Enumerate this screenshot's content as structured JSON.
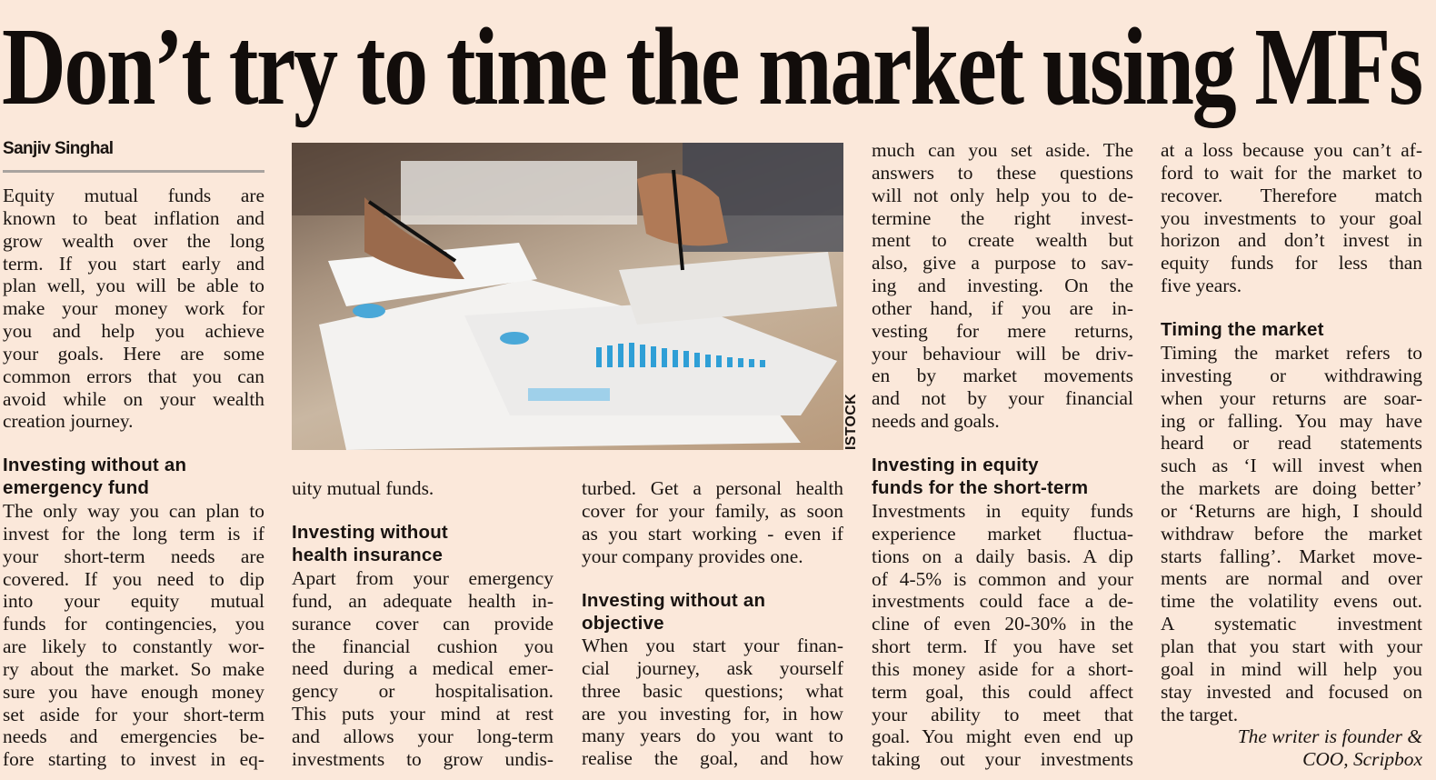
{
  "headline": "Don’t try to time the market using MFs",
  "byline": "Sanjiv Singhal",
  "photo_credit": "ISTOCK",
  "columns": [
    {
      "blocks": [
        {
          "type": "body",
          "lines": [
            "Equity mutual funds are",
            "known to beat inflation and",
            "grow wealth over the long",
            "term. If you start early and",
            "plan well, you will be able to",
            "make your money work for",
            "you and help you achieve",
            "your goals. Here are some",
            "common errors that you can",
            "avoid while on your wealth",
            "creation journey."
          ],
          "ends": true
        },
        {
          "type": "head",
          "lines": [
            "Investing without an",
            "emergency fund"
          ]
        },
        {
          "type": "body",
          "lines": [
            "The only way you can plan to",
            "invest for the long term is if",
            "your short-term needs are",
            "covered. If you need to dip",
            "into your equity mutual",
            "funds for contingencies, you",
            "are likely to constantly wor-",
            "ry about the market. So make",
            "sure you have enough money",
            "set aside for your short-term",
            "needs and emergencies be-",
            "fore starting to invest in eq-"
          ],
          "ends": false
        }
      ]
    },
    {
      "blocks": [
        {
          "type": "body",
          "lines": [
            "uity mutual funds."
          ],
          "ends": true
        },
        {
          "type": "head",
          "lines": [
            "Investing without",
            "health insurance"
          ]
        },
        {
          "type": "body",
          "lines": [
            "Apart from your emergency",
            "fund, an adequate health in-",
            "surance cover can provide",
            "the financial cushion you",
            "need during a medical emer-",
            "gency or hospitalisation.",
            "This puts your mind at rest",
            "and allows your long-term",
            "investments to grow undis-"
          ],
          "ends": false
        }
      ]
    },
    {
      "blocks": [
        {
          "type": "body",
          "lines": [
            "turbed. Get a personal health",
            "cover for your family, as soon",
            "as you start working - even if",
            "your company provides one."
          ],
          "ends": true
        },
        {
          "type": "head",
          "lines": [
            "Investing without an",
            "objective"
          ]
        },
        {
          "type": "body",
          "lines": [
            "When you start your finan-",
            "cial journey, ask yourself",
            "three basic questions; what",
            "are you investing for, in how",
            "many years do you want to",
            "realise the goal, and how"
          ],
          "ends": false
        }
      ]
    },
    {
      "blocks": [
        {
          "type": "body",
          "lines": [
            "much can you set aside. The",
            "answers to these questions",
            "will not only help you to de-",
            "termine the right invest-",
            "ment to create wealth but",
            "also, give a purpose to sav-",
            "ing and investing. On the",
            "other hand, if you are in-",
            "vesting for mere returns,",
            "your behaviour will be driv-",
            "en by market movements",
            "and not by your financial",
            "needs and goals."
          ],
          "ends": true
        },
        {
          "type": "head",
          "lines": [
            "Investing in equity",
            "funds for the short-term"
          ]
        },
        {
          "type": "body",
          "lines": [
            "Investments in equity funds",
            "experience market fluctua-",
            "tions on a daily basis. A dip",
            "of 4-5% is common and your",
            "investments could face a de-",
            "cline of even 20-30% in the",
            "short term. If you have set",
            "this money aside for a short-",
            "term goal, this could affect",
            "your ability to meet that",
            "goal. You might even end up",
            "taking out your investments"
          ],
          "ends": false
        }
      ]
    },
    {
      "blocks": [
        {
          "type": "body",
          "lines": [
            "at a loss because you can’t af-",
            "ford to wait for the market to",
            "recover. Therefore match",
            "you investments to your goal",
            "horizon and don’t invest in",
            "equity funds for less than",
            "five years."
          ],
          "ends": true
        },
        {
          "type": "head",
          "lines": [
            "Timing the market"
          ]
        },
        {
          "type": "body",
          "lines": [
            "Timing the market refers to",
            "investing or withdrawing",
            "when your returns are soar-",
            "ing or falling. You may have",
            "heard or read statements",
            "such as ‘I will invest when",
            "the markets are doing better’",
            "or ‘Returns are high, I should",
            "withdraw before the market",
            "starts falling’. Market move-",
            "ments are normal and over",
            "time the volatility evens out.",
            "A systematic investment",
            "plan that you start with your",
            "goal in mind will help you",
            "stay invested and focused on",
            "the target."
          ],
          "ends": true
        },
        {
          "type": "credit",
          "lines": [
            "The writer is founder &",
            "COO, Scripbox"
          ]
        }
      ]
    }
  ]
}
